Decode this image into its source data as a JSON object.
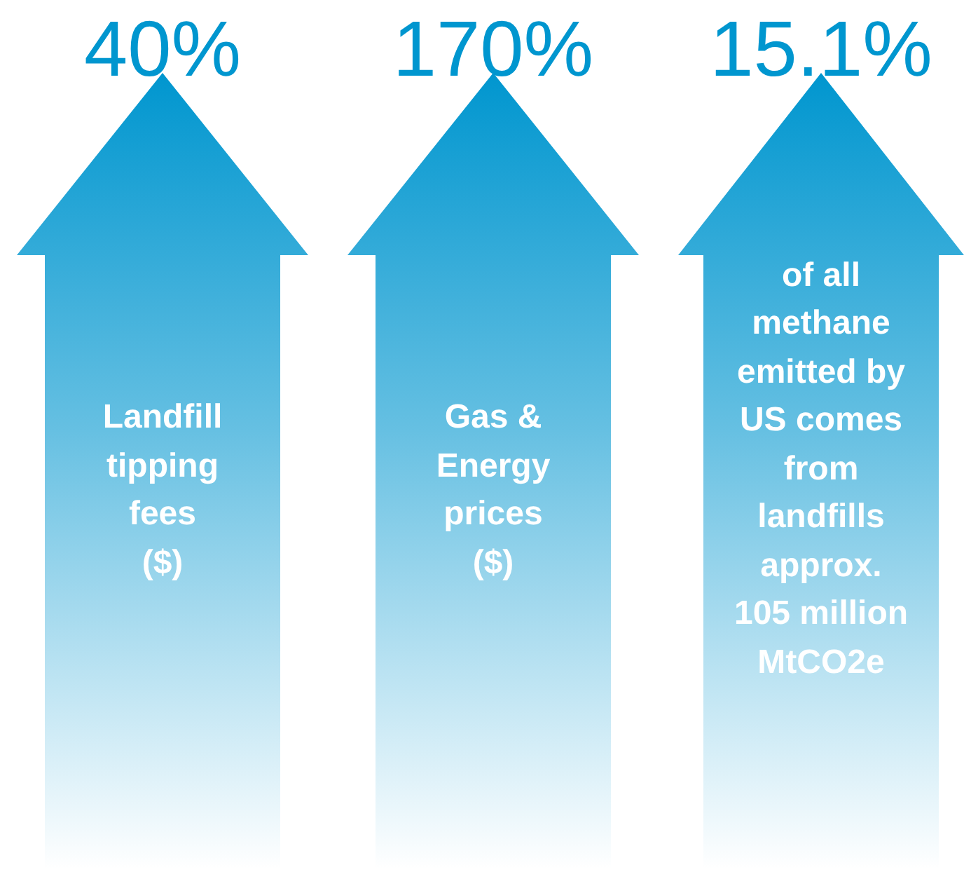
{
  "chart_data": {
    "type": "other",
    "categories": [
      "Landfill\ntipping\nfees\n($)",
      "Gas &\nEnergy\nprices\n($)",
      "of all\nmethane\nemitted by\nUS comes\nfrom\nlandfills\napprox.\n105 million\nMtCO2e"
    ],
    "values": [
      40,
      170,
      15.1
    ],
    "value_labels": [
      "40%",
      "170%",
      "15.1%"
    ],
    "colors": [
      "#0096cf",
      "#0096cf",
      "#0096cf"
    ]
  }
}
